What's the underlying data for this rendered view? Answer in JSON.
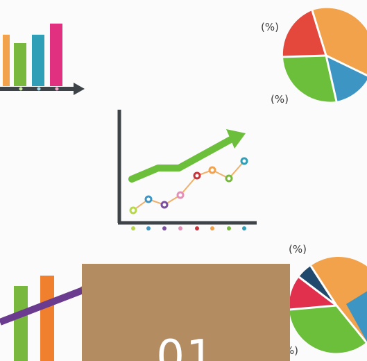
{
  "percent_labels": {
    "top_pie_upper": "(%)",
    "top_pie_lower": "(%)",
    "bottom_pie_upper": "(%)",
    "bottom_pie_side": "(%)",
    "bottom_pie_lower": "(%)"
  },
  "overlay": {
    "number": "01",
    "color": "#b48c62"
  },
  "colors": {
    "axis": "#3d4347",
    "green": "#6cbf3a",
    "orange": "#f2a24a",
    "blue": "#3d95c4",
    "red": "#e4483d",
    "pink": "#e0307f",
    "navy": "#1f4a6e",
    "purple": "#6b3b8f"
  }
}
